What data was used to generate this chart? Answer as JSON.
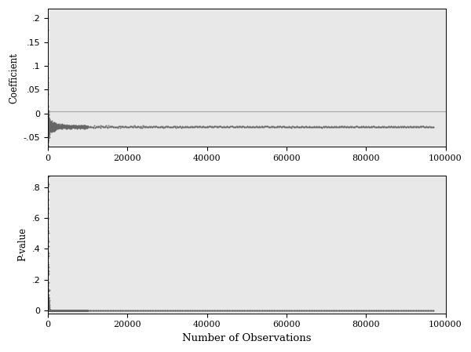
{
  "title": "",
  "xlabel": "Number of Observations",
  "ylabel_top": "Coefficient",
  "ylabel_bottom": "P-value",
  "xlim": [
    0,
    100000
  ],
  "coef_ylim": [
    -0.07,
    0.22
  ],
  "pval_ylim": [
    -0.02,
    0.88
  ],
  "coef_yticks": [
    -0.05,
    0,
    0.05,
    0.1,
    0.15,
    0.2
  ],
  "pval_yticks": [
    0,
    0.2,
    0.4,
    0.6,
    0.8
  ],
  "xticks": [
    0,
    20000,
    40000,
    60000,
    80000,
    100000
  ],
  "xtick_labels": [
    "0",
    "20000",
    "40000",
    "60000",
    "80000",
    "100000"
  ],
  "hline_coef": 0.005,
  "hline_color": "#aaaaaa",
  "dot_color": "#666666",
  "dot_size": 2,
  "panel_bg_color": "#e8e8e8",
  "background_color": "#ffffff",
  "n_obs": 97000,
  "seed": 42,
  "true_coef": -0.028,
  "figsize": [
    6.0,
    4.49
  ],
  "dpi": 100
}
